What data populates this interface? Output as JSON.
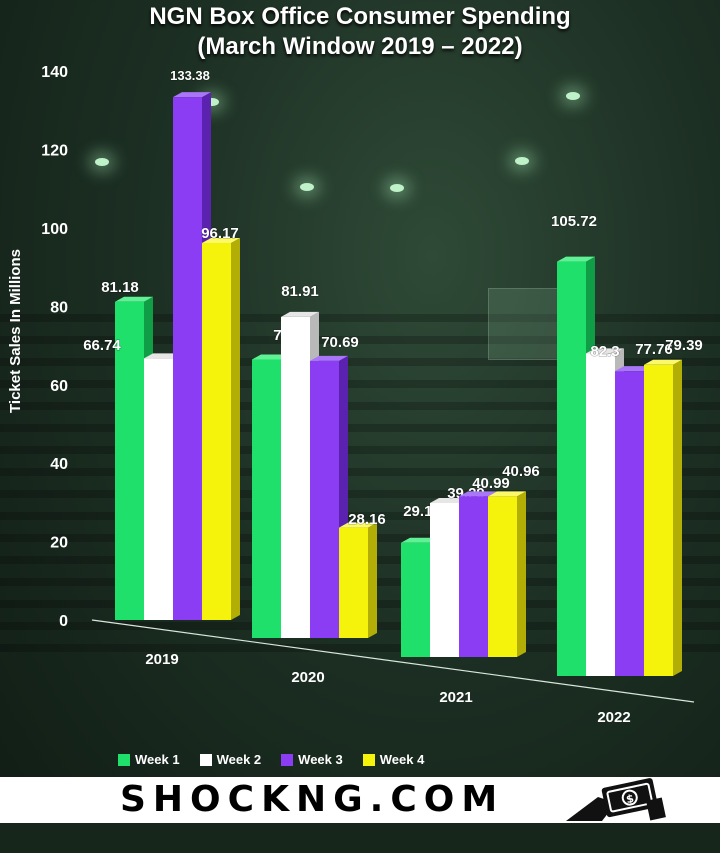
{
  "title_line1": "NGN Box Office Consumer Spending",
  "title_line2": "(March Window 2019 – 2022)",
  "brand": "SHOCKNG.COM",
  "colors": {
    "week1": "#1fe06a",
    "week2": "#ffffff",
    "week3": "#8a3df2",
    "week4": "#f5f20c"
  },
  "chart_data": {
    "type": "bar",
    "title": "NGN Box Office Consumer Spending (March Window 2019 – 2022)",
    "ylabel": "Ticket Sales In Millions",
    "xlabel": "",
    "ylim": [
      0,
      140
    ],
    "yticks": [
      "0",
      "20",
      "40",
      "60",
      "80",
      "100",
      "120",
      "140"
    ],
    "categories": [
      "2019",
      "2020",
      "2021",
      "2022"
    ],
    "legend_position": "bottom",
    "series": [
      {
        "name": "Week 1",
        "values": [
          81.18,
          71.06,
          29.15,
          105.72
        ],
        "labels": [
          "81.18",
          "71.06",
          "29.15",
          "105.72"
        ]
      },
      {
        "name": "Week 2",
        "values": [
          66.74,
          81.91,
          39.29,
          82.3
        ],
        "labels": [
          "66.74",
          "81.91",
          "39.29",
          "82.3"
        ]
      },
      {
        "name": "Week 3",
        "values": [
          133.38,
          70.69,
          40.99,
          77.76
        ],
        "labels": [
          "133.38",
          "70.69",
          "40.99",
          "77.76"
        ]
      },
      {
        "name": "Week 4",
        "values": [
          96.17,
          28.16,
          40.96,
          79.39
        ],
        "labels": [
          "96.17",
          "28.16",
          "40.96",
          "79.39"
        ]
      }
    ]
  }
}
